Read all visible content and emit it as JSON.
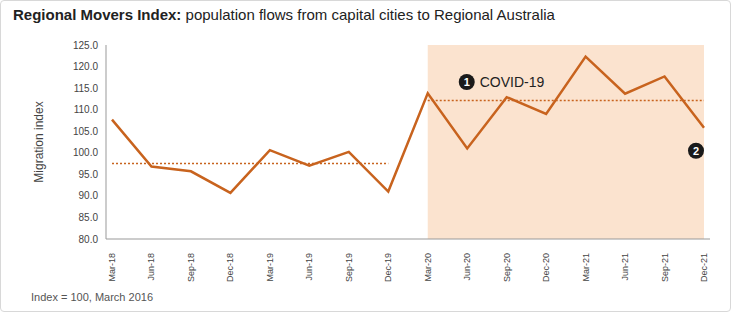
{
  "chart_data": {
    "type": "line",
    "title": "Regional Movers Index: population flows from capital cities to Regional Australia",
    "y_label": "Migration index",
    "footnote": "Index = 100, March 2016",
    "categories": [
      "Mar-18",
      "Jun-18",
      "Sep-18",
      "Dec-18",
      "Mar-19",
      "Jun-19",
      "Sep-19",
      "Dec-19",
      "Mar-20",
      "Jun-20",
      "Sep-20",
      "Dec-20",
      "Mar-21",
      "Jun-21",
      "Sep-21",
      "Dec-21"
    ],
    "values": [
      107.7,
      96.8,
      95.7,
      90.7,
      100.6,
      97.0,
      100.2,
      91.0,
      113.8,
      101.0,
      112.9,
      109.0,
      122.3,
      113.7,
      117.7,
      105.8
    ],
    "color": "#c8631e",
    "ylim": [
      80,
      125
    ],
    "yticks": [
      {
        "value": 80,
        "label": "80.0"
      },
      {
        "value": 85,
        "label": "85.0"
      },
      {
        "value": 90,
        "label": "90.0"
      },
      {
        "value": 95,
        "label": "95.0"
      },
      {
        "value": 100,
        "label": "100.0"
      },
      {
        "value": 105,
        "label": "105.0"
      },
      {
        "value": 110,
        "label": "110.0"
      },
      {
        "value": 115,
        "label": "115.0"
      },
      {
        "value": 120,
        "label": "120.0"
      },
      {
        "value": 125,
        "label": "125.0"
      }
    ],
    "grid": false,
    "reference_lines": [
      {
        "from": "Mar-18",
        "to": "Dec-19",
        "value": 97.5
      },
      {
        "from": "Mar-20",
        "to": "Dec-21",
        "value": 112.1
      }
    ],
    "shaded_period": {
      "from": "Mar-20",
      "to": "Dec-21",
      "color": "#fbe3cf"
    },
    "annotations": [
      {
        "badge": "1",
        "text": "COVID-19"
      },
      {
        "badge": "2"
      }
    ]
  }
}
